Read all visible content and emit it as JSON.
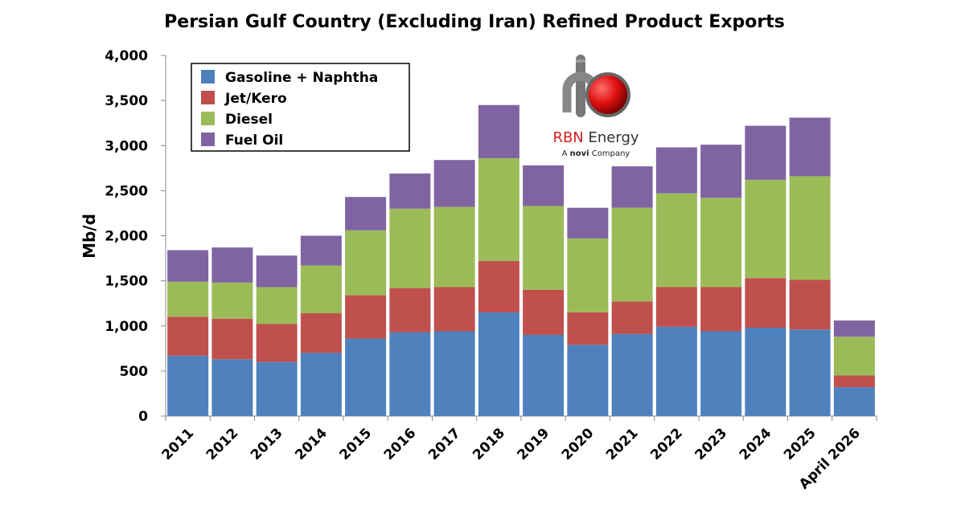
{
  "chart_data": {
    "type": "bar",
    "stacked": true,
    "title": "Persian Gulf Country (Excluding Iran) Refined Product Exports",
    "xlabel": "",
    "ylabel": "Mb/d",
    "ylim": [
      0,
      4000
    ],
    "yticks": [
      0,
      500,
      1000,
      1500,
      2000,
      2500,
      3000,
      3500,
      4000
    ],
    "ytick_labels": [
      "0",
      "500",
      "1,000",
      "1,500",
      "2,000",
      "2,500",
      "3,000",
      "3,500",
      "4,000"
    ],
    "grid": false,
    "legend_position": "top-left",
    "categories": [
      "2011",
      "2012",
      "2013",
      "2014",
      "2015",
      "2016",
      "2017",
      "2018",
      "2019",
      "2020",
      "2021",
      "2022",
      "2023",
      "2024",
      "2025",
      "April 2026"
    ],
    "series": [
      {
        "name": "Gasoline + Naphtha",
        "color": "#4f81bd",
        "values": [
          670,
          630,
          600,
          700,
          860,
          930,
          940,
          1150,
          900,
          790,
          910,
          990,
          940,
          980,
          960,
          320
        ]
      },
      {
        "name": "Jet/Kero",
        "color": "#c0504d",
        "values": [
          430,
          450,
          420,
          440,
          480,
          490,
          490,
          570,
          500,
          360,
          360,
          440,
          490,
          550,
          550,
          130
        ]
      },
      {
        "name": "Diesel",
        "color": "#9bbb59",
        "values": [
          390,
          400,
          410,
          530,
          720,
          880,
          890,
          1140,
          930,
          820,
          1040,
          1040,
          990,
          1090,
          1150,
          430
        ]
      },
      {
        "name": "Fuel Oil",
        "color": "#8064a2",
        "values": [
          350,
          390,
          350,
          330,
          370,
          390,
          520,
          590,
          450,
          340,
          460,
          510,
          590,
          600,
          650,
          180
        ]
      }
    ]
  },
  "logo": {
    "brand_red": "RBN",
    "brand_rest": " Energy",
    "tagline_pre": "A ",
    "tagline_brand": "novi",
    "tagline_post": " Company",
    "brand_color": "#d62020",
    "icon": "rbn-pipe-ball-icon"
  }
}
